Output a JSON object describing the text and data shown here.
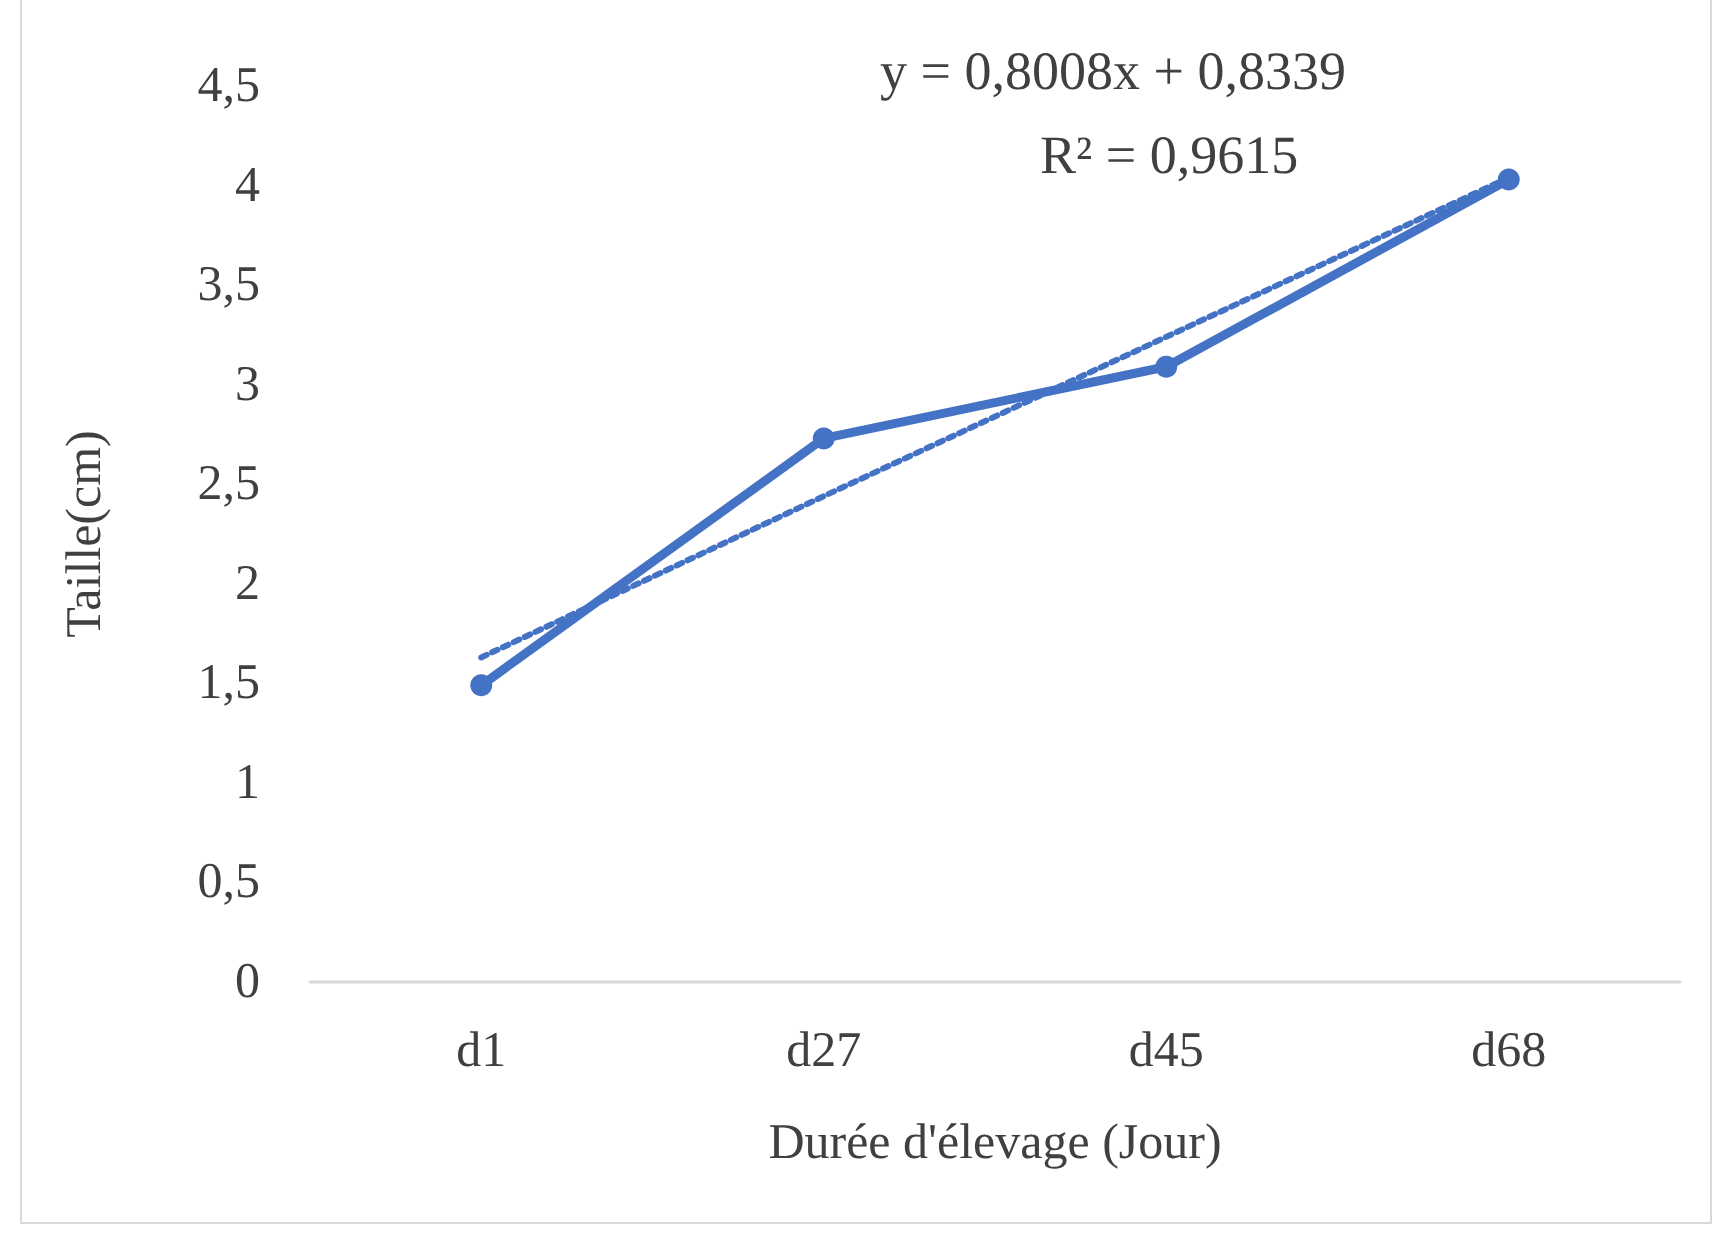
{
  "chart_data": {
    "type": "line",
    "xlabel": "Durée d'élevage (Jour)",
    "ylabel": "Taille(cm)",
    "categories": [
      "d1",
      "d27",
      "d45",
      "d68"
    ],
    "series": [
      {
        "color": "#4472c4",
        "values": [
          1.49,
          2.73,
          3.09,
          4.03
        ],
        "marker": "circle",
        "line_style": "solid"
      },
      {
        "type": "line",
        "color": "#4472c4",
        "values": [
          1.63,
          2.44,
          3.24,
          4.04
        ],
        "marker": "none",
        "line_style": "dotted"
      }
    ],
    "ylim": [
      0,
      4.5
    ],
    "yticks": [
      0,
      {
        "value": 0.5,
        "label": "0,5"
      },
      1,
      {
        "value": 1.5,
        "label": "1,5"
      },
      2,
      {
        "value": 2.5,
        "label": "2,5"
      },
      3,
      {
        "value": 3.5,
        "label": "3,5"
      },
      4,
      {
        "value": 4.5,
        "label": "4,5"
      }
    ],
    "grid": false,
    "annotations": [
      "y = 0,8008x + 0,8339",
      "R² = 0,9615"
    ]
  }
}
